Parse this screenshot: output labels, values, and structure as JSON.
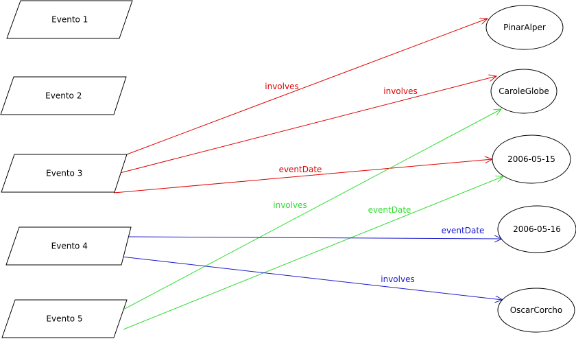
{
  "colors": {
    "red": "#e00000",
    "green": "#33dd33",
    "blue": "#1a1acc",
    "stroke": "#000000",
    "background": "#ffffff"
  },
  "events": [
    {
      "id": "e1",
      "label": "Evento 1"
    },
    {
      "id": "e2",
      "label": "Evento 2"
    },
    {
      "id": "e3",
      "label": "Evento 3"
    },
    {
      "id": "e4",
      "label": "Evento 4"
    },
    {
      "id": "e5",
      "label": "Evento 5"
    }
  ],
  "nodes": [
    {
      "id": "n1",
      "label": "PinarAlper"
    },
    {
      "id": "n2",
      "label": "CaroleGlobe"
    },
    {
      "id": "n3",
      "label": "2006-05-15"
    },
    {
      "id": "n4",
      "label": "2006-05-16"
    },
    {
      "id": "n5",
      "label": "OscarCorcho"
    }
  ],
  "edges": [
    {
      "from": "e3",
      "to": "n1",
      "label": "involves",
      "color": "red"
    },
    {
      "from": "e3",
      "to": "n2",
      "label": "involves",
      "color": "red"
    },
    {
      "from": "e3",
      "to": "n3",
      "label": "eventDate",
      "color": "red"
    },
    {
      "from": "e5",
      "to": "n2",
      "label": "involves",
      "color": "green"
    },
    {
      "from": "e5",
      "to": "n3",
      "label": "eventDate",
      "color": "green"
    },
    {
      "from": "e4",
      "to": "n4",
      "label": "eventDate",
      "color": "blue"
    },
    {
      "from": "e4",
      "to": "n5",
      "label": "involves",
      "color": "blue"
    }
  ]
}
